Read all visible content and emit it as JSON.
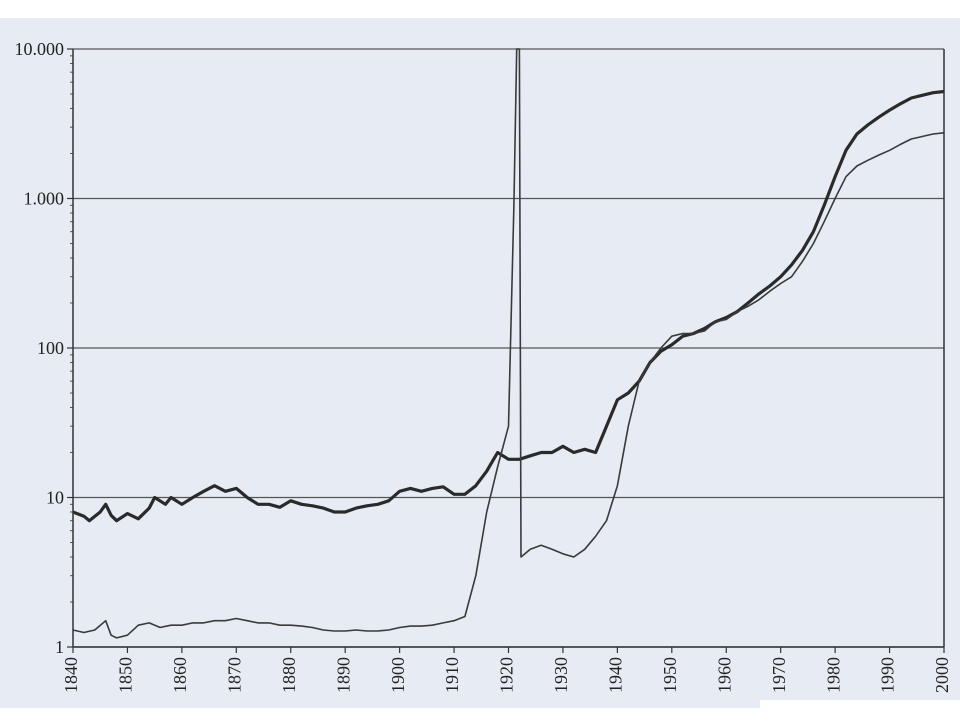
{
  "chart_data": {
    "type": "line",
    "title": "",
    "xlabel": "",
    "ylabel": "",
    "y_scale": "log",
    "ylim": [
      1,
      10000
    ],
    "xlim": [
      1840,
      2000
    ],
    "grid": true,
    "y_ticks": [
      {
        "value": 1,
        "label": "1"
      },
      {
        "value": 10,
        "label": "10"
      },
      {
        "value": 100,
        "label": "100"
      },
      {
        "value": 1000,
        "label": "1.000"
      },
      {
        "value": 10000,
        "label": "10.000"
      }
    ],
    "x_ticks": [
      {
        "value": 1840,
        "label": "1840"
      },
      {
        "value": 1850,
        "label": "1850"
      },
      {
        "value": 1860,
        "label": "1860"
      },
      {
        "value": 1870,
        "label": "1870"
      },
      {
        "value": 1880,
        "label": "1880"
      },
      {
        "value": 1890,
        "label": "1890"
      },
      {
        "value": 1900,
        "label": "1900"
      },
      {
        "value": 1910,
        "label": "1910"
      },
      {
        "value": 1920,
        "label": "1920"
      },
      {
        "value": 1930,
        "label": "1930"
      },
      {
        "value": 1940,
        "label": "1940"
      },
      {
        "value": 1950,
        "label": "1950"
      },
      {
        "value": 1960,
        "label": "1960"
      },
      {
        "value": 1970,
        "label": "1970"
      },
      {
        "value": 1980,
        "label": "1980"
      },
      {
        "value": 1990,
        "label": "1990"
      },
      {
        "value": 2000,
        "label": "2000"
      }
    ],
    "series": [
      {
        "style": "thick",
        "color": "#2a2a2a",
        "points": [
          [
            1840,
            8
          ],
          [
            1842,
            7.5
          ],
          [
            1843,
            7
          ],
          [
            1845,
            8
          ],
          [
            1846,
            9
          ],
          [
            1847,
            7.6
          ],
          [
            1848,
            7
          ],
          [
            1850,
            7.8
          ],
          [
            1852,
            7.2
          ],
          [
            1854,
            8.5
          ],
          [
            1855,
            10
          ],
          [
            1857,
            9
          ],
          [
            1858,
            10
          ],
          [
            1860,
            9
          ],
          [
            1862,
            10
          ],
          [
            1864,
            11
          ],
          [
            1866,
            12
          ],
          [
            1868,
            11
          ],
          [
            1870,
            11.5
          ],
          [
            1872,
            10
          ],
          [
            1874,
            9
          ],
          [
            1876,
            9
          ],
          [
            1878,
            8.6
          ],
          [
            1880,
            9.5
          ],
          [
            1882,
            9
          ],
          [
            1884,
            8.8
          ],
          [
            1886,
            8.5
          ],
          [
            1888,
            8
          ],
          [
            1890,
            8
          ],
          [
            1892,
            8.5
          ],
          [
            1894,
            8.8
          ],
          [
            1896,
            9
          ],
          [
            1898,
            9.5
          ],
          [
            1900,
            11
          ],
          [
            1902,
            11.5
          ],
          [
            1904,
            11
          ],
          [
            1906,
            11.5
          ],
          [
            1908,
            11.8
          ],
          [
            1910,
            10.5
          ],
          [
            1912,
            10.5
          ],
          [
            1914,
            12
          ],
          [
            1916,
            15
          ],
          [
            1918,
            20
          ],
          [
            1920,
            18
          ],
          [
            1922,
            18
          ],
          [
            1924,
            19
          ],
          [
            1926,
            20
          ],
          [
            1928,
            20
          ],
          [
            1930,
            22
          ],
          [
            1932,
            20
          ],
          [
            1934,
            21
          ],
          [
            1936,
            20
          ],
          [
            1938,
            30
          ],
          [
            1940,
            45
          ],
          [
            1942,
            50
          ],
          [
            1944,
            60
          ],
          [
            1946,
            80
          ],
          [
            1948,
            95
          ],
          [
            1950,
            105
          ],
          [
            1952,
            120
          ],
          [
            1954,
            125
          ],
          [
            1956,
            135
          ],
          [
            1958,
            150
          ],
          [
            1960,
            160
          ],
          [
            1962,
            175
          ],
          [
            1964,
            200
          ],
          [
            1966,
            230
          ],
          [
            1968,
            260
          ],
          [
            1970,
            300
          ],
          [
            1972,
            360
          ],
          [
            1974,
            450
          ],
          [
            1976,
            600
          ],
          [
            1978,
            900
          ],
          [
            1980,
            1400
          ],
          [
            1982,
            2100
          ],
          [
            1984,
            2700
          ],
          [
            1986,
            3100
          ],
          [
            1988,
            3500
          ],
          [
            1990,
            3900
          ],
          [
            1992,
            4300
          ],
          [
            1994,
            4700
          ],
          [
            1996,
            4900
          ],
          [
            1998,
            5100
          ],
          [
            2000,
            5200
          ]
        ]
      },
      {
        "style": "thin",
        "color": "#3a3a3a",
        "points": [
          [
            1840,
            1.3
          ],
          [
            1842,
            1.25
          ],
          [
            1844,
            1.3
          ],
          [
            1846,
            1.5
          ],
          [
            1847,
            1.2
          ],
          [
            1848,
            1.15
          ],
          [
            1850,
            1.2
          ],
          [
            1852,
            1.4
          ],
          [
            1854,
            1.45
          ],
          [
            1856,
            1.35
          ],
          [
            1858,
            1.4
          ],
          [
            1860,
            1.4
          ],
          [
            1862,
            1.45
          ],
          [
            1864,
            1.45
          ],
          [
            1866,
            1.5
          ],
          [
            1868,
            1.5
          ],
          [
            1870,
            1.55
          ],
          [
            1872,
            1.5
          ],
          [
            1874,
            1.45
          ],
          [
            1876,
            1.45
          ],
          [
            1878,
            1.4
          ],
          [
            1880,
            1.4
          ],
          [
            1882,
            1.38
          ],
          [
            1884,
            1.35
          ],
          [
            1886,
            1.3
          ],
          [
            1888,
            1.28
          ],
          [
            1890,
            1.28
          ],
          [
            1892,
            1.3
          ],
          [
            1894,
            1.28
          ],
          [
            1896,
            1.28
          ],
          [
            1898,
            1.3
          ],
          [
            1900,
            1.35
          ],
          [
            1902,
            1.38
          ],
          [
            1904,
            1.38
          ],
          [
            1906,
            1.4
          ],
          [
            1908,
            1.45
          ],
          [
            1910,
            1.5
          ],
          [
            1912,
            1.6
          ],
          [
            1914,
            3
          ],
          [
            1916,
            8
          ],
          [
            1918,
            16
          ],
          [
            1920,
            30
          ],
          [
            1921,
            900
          ],
          [
            1921.5,
            10000
          ],
          [
            1922,
            10000
          ],
          [
            1922.3,
            4
          ],
          [
            1924,
            4.5
          ],
          [
            1926,
            4.8
          ],
          [
            1928,
            4.5
          ],
          [
            1930,
            4.2
          ],
          [
            1932,
            4
          ],
          [
            1934,
            4.5
          ],
          [
            1936,
            5.5
          ],
          [
            1938,
            7
          ],
          [
            1940,
            12
          ],
          [
            1942,
            30
          ],
          [
            1944,
            60
          ],
          [
            1946,
            80
          ],
          [
            1948,
            100
          ],
          [
            1950,
            120
          ],
          [
            1952,
            125
          ],
          [
            1954,
            125
          ],
          [
            1956,
            130
          ],
          [
            1958,
            150
          ],
          [
            1960,
            155
          ],
          [
            1962,
            175
          ],
          [
            1964,
            190
          ],
          [
            1966,
            210
          ],
          [
            1968,
            240
          ],
          [
            1970,
            270
          ],
          [
            1972,
            300
          ],
          [
            1974,
            380
          ],
          [
            1976,
            500
          ],
          [
            1978,
            700
          ],
          [
            1980,
            1000
          ],
          [
            1982,
            1400
          ],
          [
            1984,
            1650
          ],
          [
            1986,
            1800
          ],
          [
            1988,
            1950
          ],
          [
            1990,
            2100
          ],
          [
            1992,
            2300
          ],
          [
            1994,
            2500
          ],
          [
            1996,
            2600
          ],
          [
            1998,
            2700
          ],
          [
            2000,
            2750
          ]
        ]
      }
    ]
  }
}
